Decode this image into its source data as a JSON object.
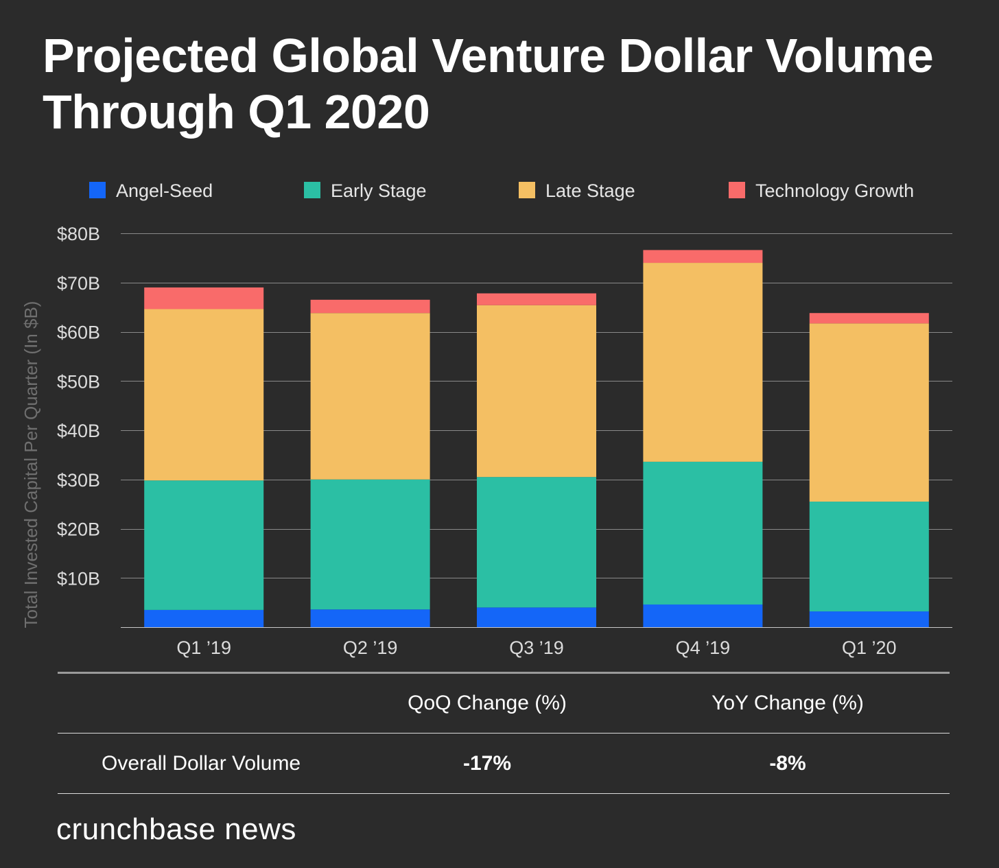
{
  "title": "Projected Global Venture Dollar Volume Through Q1 2020",
  "chart_data": {
    "type": "bar",
    "stacked": true,
    "title": "Projected Global Venture Dollar Volume Through Q1 2020",
    "ylabel": "Total Invested Capital Per Quarter (In $B)",
    "xlabel": "",
    "ylim": [
      0,
      80
    ],
    "yticks": [
      10,
      20,
      30,
      40,
      50,
      60,
      70,
      80
    ],
    "ytick_labels": [
      "$10B",
      "$20B",
      "$30B",
      "$40B",
      "$50B",
      "$60B",
      "$70B",
      "$80B"
    ],
    "grid": true,
    "legend_position": "top",
    "categories": [
      "Q1 ’19",
      "Q2 ’19",
      "Q3 ’19",
      "Q4 ’19",
      "Q1 ’20"
    ],
    "series": [
      {
        "name": "Angel-Seed",
        "color": "#1466f8",
        "values": [
          3.5,
          3.6,
          4.0,
          4.6,
          3.2
        ]
      },
      {
        "name": "Early Stage",
        "color": "#2bbfa4",
        "values": [
          26.3,
          26.4,
          26.5,
          29.0,
          22.3
        ]
      },
      {
        "name": "Late Stage",
        "color": "#f4bf63",
        "values": [
          34.8,
          33.8,
          34.9,
          40.4,
          36.2
        ]
      },
      {
        "name": "Technology Growth",
        "color": "#f96b6a",
        "values": [
          4.4,
          2.7,
          2.4,
          2.6,
          2.1
        ]
      }
    ]
  },
  "table": {
    "headers": [
      "QoQ Change (%)",
      "YoY Change (%)"
    ],
    "rows": [
      {
        "label": "Overall Dollar Volume",
        "values": [
          "-17%",
          "-8%"
        ]
      }
    ]
  },
  "brand": "crunchbase news"
}
